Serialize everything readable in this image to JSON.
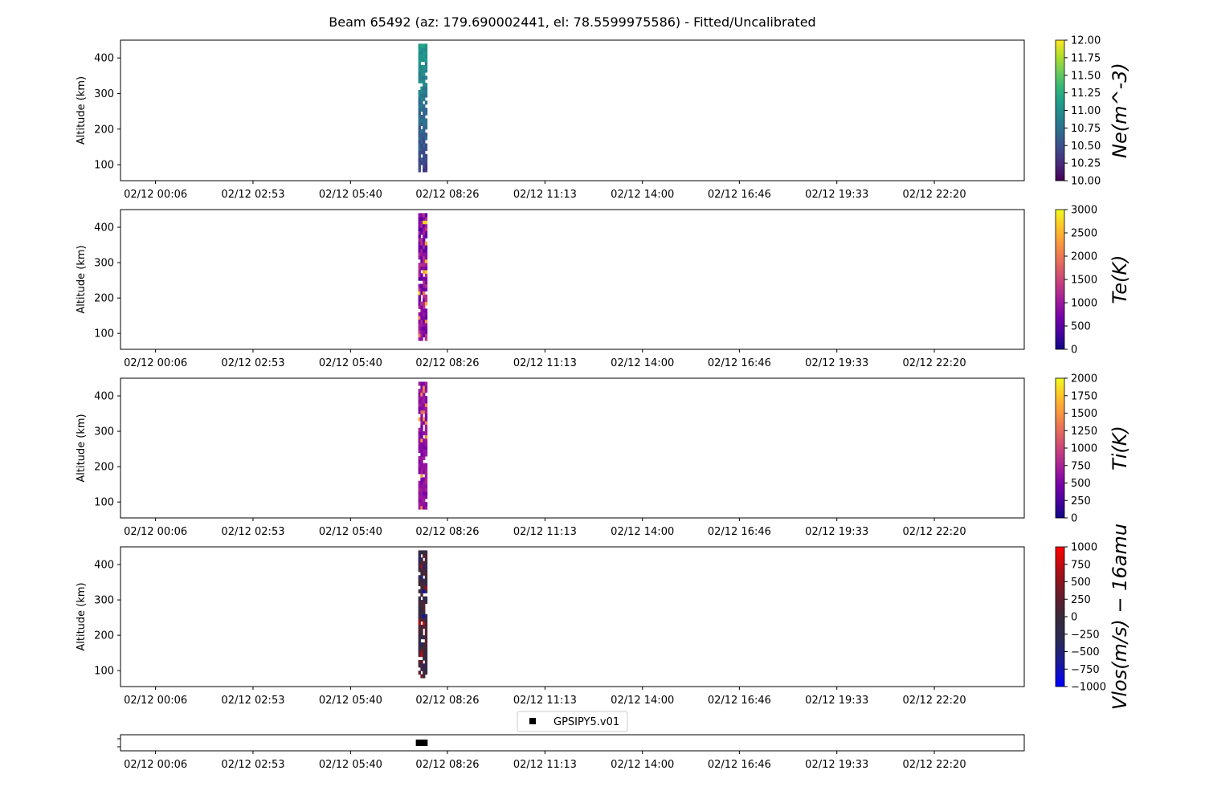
{
  "figure": {
    "title": "Beam 65492 (az: 179.690002441, el: 78.5599975586) - Fitted/Uncalibrated"
  },
  "chart_data": [
    {
      "type": "heatmap",
      "ylabel": "Altitude (km)",
      "xlabel": "",
      "x_tick_labels": [
        "02/12 00:06",
        "02/12 02:53",
        "02/12 05:40",
        "02/12 08:26",
        "02/12 11:13",
        "02/12 14:00",
        "02/12 16:46",
        "02/12 19:33",
        "02/12 22:20"
      ],
      "x_range_hours": [
        -0.9,
        24.9
      ],
      "x_tick_hours": [
        0.1,
        2.883,
        5.667,
        8.433,
        11.217,
        14.0,
        16.767,
        19.55,
        22.333
      ],
      "y_ticks": [
        100,
        200,
        300,
        400
      ],
      "ylim": [
        55,
        450
      ],
      "data_span_hours": [
        7.6,
        7.85
      ],
      "data_alt_range": [
        80,
        440
      ],
      "colorbar": {
        "label": "Ne(m^-3)",
        "colormap": "viridis",
        "range": [
          10.0,
          12.0
        ],
        "ticks": [
          "10.00",
          "10.25",
          "10.50",
          "10.75",
          "11.00",
          "11.25",
          "11.50",
          "11.75",
          "12.00"
        ]
      }
    },
    {
      "type": "heatmap",
      "ylabel": "Altitude (km)",
      "xlabel": "",
      "x_tick_labels": [
        "02/12 00:06",
        "02/12 02:53",
        "02/12 05:40",
        "02/12 08:26",
        "02/12 11:13",
        "02/12 14:00",
        "02/12 16:46",
        "02/12 19:33",
        "02/12 22:20"
      ],
      "x_range_hours": [
        -0.9,
        24.9
      ],
      "x_tick_hours": [
        0.1,
        2.883,
        5.667,
        8.433,
        11.217,
        14.0,
        16.767,
        19.55,
        22.333
      ],
      "y_ticks": [
        100,
        200,
        300,
        400
      ],
      "ylim": [
        55,
        450
      ],
      "data_span_hours": [
        7.6,
        7.85
      ],
      "data_alt_range": [
        80,
        440
      ],
      "colorbar": {
        "label": "Te(K)",
        "colormap": "plasma",
        "range": [
          0,
          3000
        ],
        "ticks": [
          "0",
          "500",
          "1000",
          "1500",
          "2000",
          "2500",
          "3000"
        ]
      }
    },
    {
      "type": "heatmap",
      "ylabel": "Altitude (km)",
      "xlabel": "",
      "x_tick_labels": [
        "02/12 00:06",
        "02/12 02:53",
        "02/12 05:40",
        "02/12 08:26",
        "02/12 11:13",
        "02/12 14:00",
        "02/12 16:46",
        "02/12 19:33",
        "02/12 22:20"
      ],
      "x_range_hours": [
        -0.9,
        24.9
      ],
      "x_tick_hours": [
        0.1,
        2.883,
        5.667,
        8.433,
        11.217,
        14.0,
        16.767,
        19.55,
        22.333
      ],
      "y_ticks": [
        100,
        200,
        300,
        400
      ],
      "ylim": [
        55,
        450
      ],
      "data_span_hours": [
        7.6,
        7.85
      ],
      "data_alt_range": [
        80,
        440
      ],
      "colorbar": {
        "label": "Ti(K)",
        "colormap": "plasma",
        "range": [
          0,
          2000
        ],
        "ticks": [
          "0",
          "250",
          "500",
          "750",
          "1000",
          "1250",
          "1500",
          "1750",
          "2000"
        ]
      }
    },
    {
      "type": "heatmap",
      "ylabel": "Altitude (km)",
      "xlabel": "",
      "x_tick_labels": [
        "02/12 00:06",
        "02/12 02:53",
        "02/12 05:40",
        "02/12 08:26",
        "02/12 11:13",
        "02/12 14:00",
        "02/12 16:46",
        "02/12 19:33",
        "02/12 22:20"
      ],
      "x_range_hours": [
        -0.9,
        24.9
      ],
      "x_tick_hours": [
        0.1,
        2.883,
        5.667,
        8.433,
        11.217,
        14.0,
        16.767,
        19.55,
        22.333
      ],
      "y_ticks": [
        100,
        200,
        300,
        400
      ],
      "ylim": [
        55,
        450
      ],
      "data_span_hours": [
        7.6,
        7.85
      ],
      "data_alt_range": [
        80,
        440
      ],
      "colorbar": {
        "label": "Vlos(m/s) − 16amu",
        "colormap": "blue-black-red",
        "range": [
          -1000,
          1000
        ],
        "ticks": [
          "−1000",
          "−750",
          "−500",
          "−250",
          "0",
          "250",
          "500",
          "750",
          "1000"
        ]
      }
    },
    {
      "type": "scatter",
      "legend": [
        "GPSIPY5.v01"
      ],
      "legend_position": "top-center",
      "x_tick_labels": [
        "02/12 00:06",
        "02/12 02:53",
        "02/12 05:40",
        "02/12 08:26",
        "02/12 11:13",
        "02/12 14:00",
        "02/12 16:46",
        "02/12 19:33",
        "02/12 22:20"
      ],
      "x_range_hours": [
        -0.9,
        24.9
      ],
      "x_tick_hours": [
        0.1,
        2.883,
        5.667,
        8.433,
        11.217,
        14.0,
        16.767,
        19.55,
        22.333
      ],
      "marker": "square",
      "marker_color": "#000000",
      "series": [
        {
          "name": "GPSIPY5.v01",
          "x_hours": [
            7.6,
            7.62,
            7.64,
            7.66,
            7.68,
            7.7,
            7.72,
            7.74,
            7.76,
            7.78,
            7.8
          ],
          "y": [
            0,
            0,
            0,
            0,
            0,
            0,
            0,
            0,
            0,
            0,
            0
          ]
        }
      ]
    }
  ]
}
